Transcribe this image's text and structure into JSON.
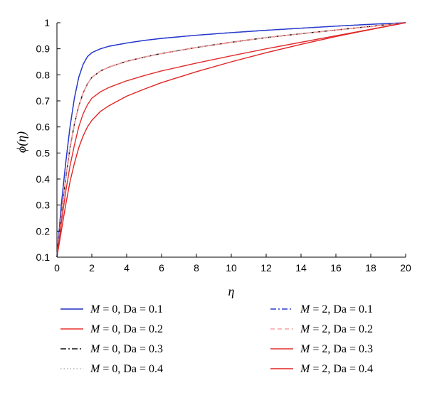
{
  "chart_data": {
    "type": "line",
    "xlabel": "η",
    "ylabel": "ϕ(η)",
    "xlim": [
      0,
      20
    ],
    "ylim": [
      0.1,
      1
    ],
    "x_ticks": [
      "0",
      "2",
      "4",
      "6",
      "8",
      "10",
      "12",
      "14",
      "16",
      "18",
      "20"
    ],
    "y_ticks": [
      "0.1",
      "0.2",
      "0.3",
      "0.4",
      "0.5",
      "0.6",
      "0.7",
      "0.8",
      "0.9",
      "1"
    ],
    "grid": false,
    "legend_position": "bottom",
    "series": [
      {
        "name": "M = 0, Da = 0.1",
        "color": "#1f2fbf",
        "dash": "solid",
        "x": [
          0,
          0.25,
          0.5,
          0.75,
          1,
          1.25,
          1.5,
          1.75,
          2,
          2.5,
          3,
          4,
          5,
          6,
          8,
          10,
          12,
          14,
          16,
          18,
          20
        ],
        "y": [
          0.1,
          0.3,
          0.46,
          0.6,
          0.71,
          0.79,
          0.84,
          0.87,
          0.885,
          0.9,
          0.91,
          0.922,
          0.932,
          0.94,
          0.952,
          0.962,
          0.971,
          0.979,
          0.987,
          0.994,
          1.0
        ]
      },
      {
        "name": "M = 0, Da = 0.2",
        "color": "#e8302a",
        "dash": "solid",
        "x": [
          0,
          0.25,
          0.5,
          0.75,
          1,
          1.25,
          1.5,
          1.75,
          2,
          2.5,
          3,
          4,
          5,
          6,
          8,
          10,
          12,
          14,
          16,
          18,
          20
        ],
        "y": [
          0.1,
          0.26,
          0.4,
          0.52,
          0.61,
          0.68,
          0.73,
          0.765,
          0.79,
          0.815,
          0.83,
          0.852,
          0.868,
          0.882,
          0.905,
          0.925,
          0.943,
          0.958,
          0.972,
          0.986,
          1.0
        ]
      },
      {
        "name": "M = 0, Da = 0.3",
        "color": "#111111",
        "dash": "dashdot",
        "x": [
          0,
          0.25,
          0.5,
          0.75,
          1,
          1.25,
          1.5,
          1.75,
          2,
          2.5,
          3,
          4,
          5,
          6,
          8,
          10,
          12,
          14,
          16,
          18,
          20
        ],
        "y": [
          0.1,
          0.26,
          0.4,
          0.52,
          0.61,
          0.68,
          0.73,
          0.765,
          0.79,
          0.815,
          0.83,
          0.852,
          0.868,
          0.882,
          0.905,
          0.925,
          0.943,
          0.958,
          0.972,
          0.986,
          1.0
        ]
      },
      {
        "name": "M = 0, Da = 0.4",
        "color": "#b0b0b0",
        "dash": "dotted",
        "x": [
          0,
          0.25,
          0.5,
          0.75,
          1,
          1.25,
          1.5,
          1.75,
          2,
          2.5,
          3,
          4,
          5,
          6,
          8,
          10,
          12,
          14,
          16,
          18,
          20
        ],
        "y": [
          0.1,
          0.26,
          0.4,
          0.52,
          0.61,
          0.68,
          0.73,
          0.765,
          0.79,
          0.815,
          0.83,
          0.852,
          0.868,
          0.882,
          0.905,
          0.925,
          0.943,
          0.958,
          0.972,
          0.986,
          1.0
        ]
      },
      {
        "name": "M = 2, Da = 0.1",
        "color": "#2a3fd4",
        "dash": "dashdot",
        "x": [
          0,
          0.25,
          0.5,
          0.75,
          1,
          1.25,
          1.5,
          1.75,
          2,
          2.5,
          3,
          4,
          5,
          6,
          8,
          10,
          12,
          14,
          16,
          18,
          20
        ],
        "y": [
          0.1,
          0.3,
          0.46,
          0.6,
          0.71,
          0.79,
          0.84,
          0.87,
          0.885,
          0.9,
          0.91,
          0.922,
          0.932,
          0.94,
          0.952,
          0.962,
          0.971,
          0.979,
          0.987,
          0.994,
          1.0
        ]
      },
      {
        "name": "M = 2, Da = 0.2",
        "color": "#f4a3a3",
        "dash": "dashed",
        "x": [
          0,
          0.25,
          0.5,
          0.75,
          1,
          1.25,
          1.5,
          1.75,
          2,
          2.5,
          3,
          4,
          5,
          6,
          8,
          10,
          12,
          14,
          16,
          18,
          20
        ],
        "y": [
          0.1,
          0.26,
          0.4,
          0.52,
          0.61,
          0.68,
          0.73,
          0.765,
          0.79,
          0.815,
          0.83,
          0.852,
          0.868,
          0.882,
          0.905,
          0.925,
          0.943,
          0.958,
          0.972,
          0.986,
          1.0
        ]
      },
      {
        "name": "M = 2, Da = 0.3",
        "color": "#e22d2d",
        "dash": "solid",
        "x": [
          0,
          0.25,
          0.5,
          0.75,
          1,
          1.25,
          1.5,
          1.75,
          2,
          2.5,
          3,
          4,
          5,
          6,
          8,
          10,
          12,
          14,
          16,
          18,
          20
        ],
        "y": [
          0.1,
          0.23,
          0.35,
          0.45,
          0.53,
          0.6,
          0.65,
          0.685,
          0.71,
          0.735,
          0.752,
          0.777,
          0.797,
          0.815,
          0.845,
          0.873,
          0.9,
          0.925,
          0.95,
          0.975,
          1.0
        ]
      },
      {
        "name": "M = 2, Da = 0.4",
        "color": "#e02525",
        "dash": "solid",
        "x": [
          0,
          0.25,
          0.5,
          0.75,
          1,
          1.25,
          1.5,
          1.75,
          2,
          2.5,
          3,
          4,
          5,
          6,
          8,
          10,
          12,
          14,
          16,
          18,
          20
        ],
        "y": [
          0.1,
          0.2,
          0.3,
          0.39,
          0.46,
          0.52,
          0.565,
          0.6,
          0.625,
          0.66,
          0.682,
          0.718,
          0.745,
          0.77,
          0.812,
          0.85,
          0.885,
          0.917,
          0.947,
          0.974,
          1.0
        ]
      }
    ],
    "legend": [
      {
        "var": "M",
        "rest": " = 0, Da = 0.1",
        "series": 0
      },
      {
        "var": "M",
        "rest": " = 0, Da = 0.2",
        "series": 1
      },
      {
        "var": "M",
        "rest": " = 0, Da = 0.3",
        "series": 2
      },
      {
        "var": "M",
        "rest": " = 0, Da = 0.4",
        "series": 3
      },
      {
        "var": "M",
        "rest": " = 2, Da = 0.1",
        "series": 4
      },
      {
        "var": "M",
        "rest": " = 2, Da = 0.2",
        "series": 5
      },
      {
        "var": "M",
        "rest": " = 2, Da = 0.3",
        "series": 6
      },
      {
        "var": "M",
        "rest": " = 2, Da = 0.4",
        "series": 7
      }
    ]
  }
}
